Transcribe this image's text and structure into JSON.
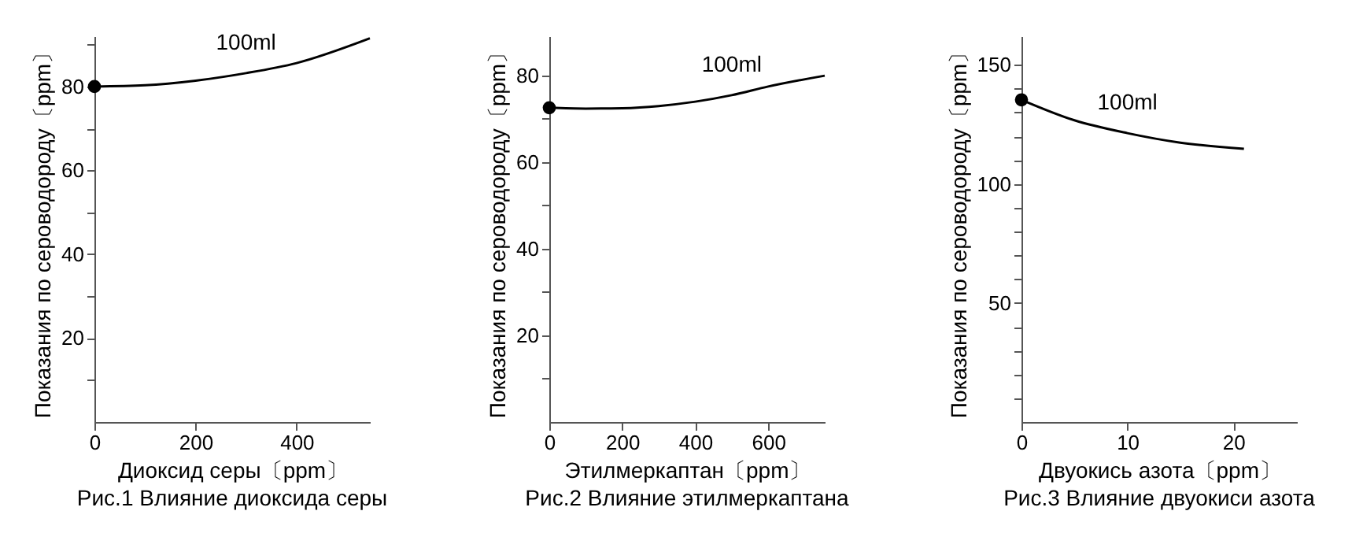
{
  "chart_data": [
    {
      "type": "line",
      "title": "Рис.1 Влияние диоксида серы",
      "xlabel": "Диоксид серы〔ppm〕",
      "ylabel": "Показания по сероводороду〔ppm〕",
      "xlim": [
        0,
        545
      ],
      "xticks": [
        0,
        200,
        400
      ],
      "ylim": [
        0,
        92
      ],
      "yticks": [
        {
          "value": 10,
          "label": null
        },
        20,
        {
          "value": 30,
          "label": null
        },
        40,
        {
          "value": 50,
          "label": null
        },
        60,
        {
          "value": 70,
          "label": null
        },
        80,
        {
          "value": 90,
          "label": null
        }
      ],
      "grid": false,
      "series": [
        {
          "name": "100ml",
          "color": "#000000",
          "x": [
            0,
            100,
            200,
            300,
            400,
            545
          ],
          "values": [
            80,
            80.3,
            81.4,
            83.2,
            85.6,
            91.5
          ]
        },
        {
          "type": "scatter",
          "color": "#000000",
          "x": [
            0
          ],
          "values": [
            80
          ]
        }
      ]
    },
    {
      "type": "line",
      "title": "Рис.2 Влияние этилмеркаптана",
      "xlabel": "Этилмеркаптан〔ppm〕",
      "ylabel": "Показания по сероводороду〔ppm〕",
      "xlim": [
        0,
        755
      ],
      "xticks": [
        0,
        200,
        400,
        600
      ],
      "ylim": [
        0,
        89
      ],
      "yticks": [
        {
          "value": 10,
          "label": null
        },
        20,
        {
          "value": 30,
          "label": null
        },
        40,
        {
          "value": 50,
          "label": null
        },
        60,
        {
          "value": 70,
          "label": null
        },
        80
      ],
      "grid": false,
      "series": [
        {
          "name": "100ml",
          "color": "#000000",
          "x": [
            0,
            100,
            200,
            300,
            400,
            500,
            600,
            755
          ],
          "values": [
            72.5,
            72.3,
            72.4,
            72.9,
            73.9,
            75.4,
            77.4,
            79.9
          ]
        },
        {
          "type": "scatter",
          "color": "#000000",
          "x": [
            0
          ],
          "values": [
            72.5
          ]
        }
      ]
    },
    {
      "type": "line",
      "title": "Рис.3 Влияние двуокиси азота",
      "xlabel": "Двуокись азота〔ppm〕",
      "ylabel": "Показания по сероводороду〔ppm〕",
      "xlim": [
        0,
        26
      ],
      "xticks": [
        0,
        10,
        20
      ],
      "ylim": [
        0,
        162
      ],
      "yticks": [
        {
          "value": 10,
          "label": null
        },
        {
          "value": 20,
          "label": null
        },
        {
          "value": 30,
          "label": null
        },
        {
          "value": 40,
          "label": null
        },
        50,
        {
          "value": 60,
          "label": null
        },
        {
          "value": 70,
          "label": null
        },
        {
          "value": 80,
          "label": null
        },
        {
          "value": 90,
          "label": null
        },
        100,
        {
          "value": 110,
          "label": null
        },
        {
          "value": 120,
          "label": null
        },
        {
          "value": 130,
          "label": null
        },
        {
          "value": 140,
          "label": null
        },
        150
      ],
      "grid": false,
      "series": [
        {
          "name": "100ml",
          "color": "#000000",
          "x": [
            0,
            5,
            10,
            15,
            21
          ],
          "values": [
            135.3,
            126.7,
            121.3,
            117.3,
            114.7
          ]
        },
        {
          "type": "scatter",
          "color": "#000000",
          "x": [
            0
          ],
          "values": [
            135.3
          ]
        }
      ]
    }
  ]
}
